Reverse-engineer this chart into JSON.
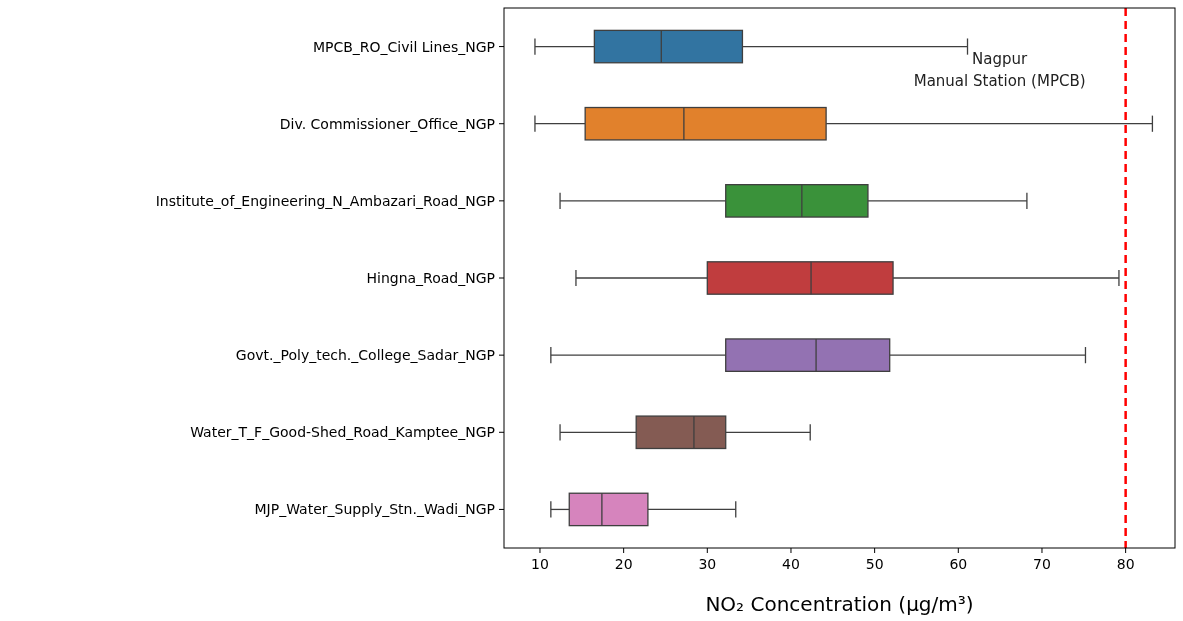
{
  "chart_data": {
    "type": "box",
    "xlabel": "NO₂ Concentration (μg/m³)",
    "orientation": "horizontal",
    "categories": [
      "MPCB_RO_Civil Lines_NGP",
      "Div. Commissioner_Office_NGP",
      "Institute_of_Engineering_N_Ambazari_Road_NGP",
      "Hingna_Road_NGP",
      "Govt._Poly_tech._College_Sadar_NGP",
      "Water_T_F_Good-Shed_Road_Kamptee_NGP",
      "MJP_Water_Supply_Stn._Wadi_NGP"
    ],
    "colors": [
      "#3274a1",
      "#e1812c",
      "#3a923a",
      "#c03d3e",
      "#9372b2",
      "#845b53",
      "#d684bd"
    ],
    "boxes": [
      {
        "low": 9.4,
        "q1": 16.5,
        "median": 24.5,
        "q3": 34.2,
        "high": 61.1
      },
      {
        "low": 9.4,
        "q1": 15.4,
        "median": 27.2,
        "q3": 44.2,
        "high": 83.2
      },
      {
        "low": 12.4,
        "q1": 32.2,
        "median": 41.3,
        "q3": 49.2,
        "high": 68.2
      },
      {
        "low": 14.3,
        "q1": 30.0,
        "median": 42.4,
        "q3": 52.2,
        "high": 79.2
      },
      {
        "low": 11.3,
        "q1": 32.2,
        "median": 43.0,
        "q3": 51.8,
        "high": 75.2
      },
      {
        "low": 12.4,
        "q1": 21.5,
        "median": 28.4,
        "q3": 32.2,
        "high": 42.3
      },
      {
        "low": 11.3,
        "q1": 13.5,
        "median": 17.4,
        "q3": 22.9,
        "high": 33.4
      }
    ],
    "xlim": [
      5.7,
      85.9
    ],
    "xticks": [
      10,
      20,
      30,
      40,
      50,
      60,
      70,
      80
    ],
    "ref_lines": [
      {
        "axis": "x",
        "value": 80,
        "label": "Nagpur\nManual Station (MPCB)",
        "color": "#ff0000",
        "line_style": "dashed"
      }
    ],
    "grid": false
  }
}
